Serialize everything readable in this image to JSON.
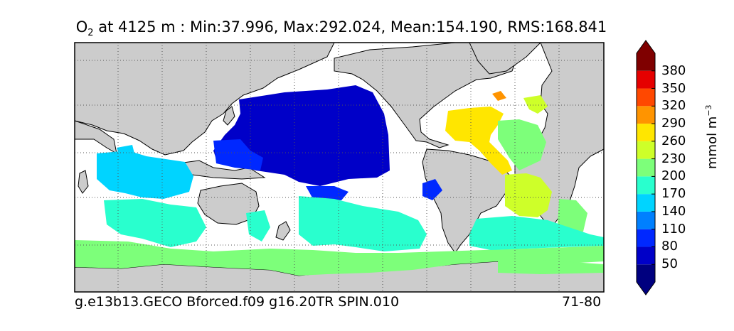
{
  "title": {
    "variable": "O",
    "variable_sub": "2",
    "text": " at 4125 m : Min:37.996, Max:292.024, Mean:154.190, RMS:168.841"
  },
  "footer": {
    "left": "g.e13b13.GECO Bforced.f09 g16.20TR SPIN.010",
    "right": "71-80"
  },
  "colorbar": {
    "units_main": "mmol m",
    "units_exp": "−3",
    "tick_labels": [
      "50",
      "80",
      "110",
      "140",
      "170",
      "200",
      "230",
      "260",
      "290",
      "320",
      "350",
      "380"
    ],
    "colors": [
      "#00007f",
      "#0000c8",
      "#0028ff",
      "#0080ff",
      "#00d4ff",
      "#29ffce",
      "#7dff7a",
      "#ceff29",
      "#ffe600",
      "#ff9400",
      "#ff4800",
      "#e50000",
      "#7f0000"
    ]
  },
  "map": {
    "land_color": "#cccccc",
    "ocean_nodata_color": "#ffffff",
    "gridlines": "dotted"
  }
}
